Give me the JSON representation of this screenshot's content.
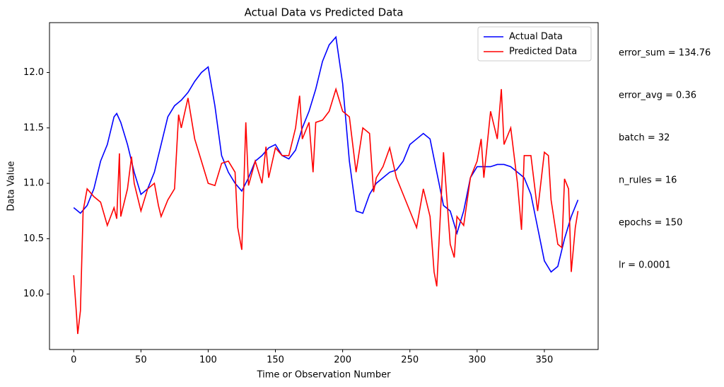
{
  "chart_data": {
    "type": "line",
    "title": "Actual Data vs Predicted Data",
    "xlabel": "Time or Observation Number",
    "ylabel": "Data Value",
    "xlim": [
      -18,
      390
    ],
    "ylim": [
      9.5,
      12.45
    ],
    "xticks": [
      0,
      50,
      100,
      150,
      200,
      250,
      300,
      350
    ],
    "yticks": [
      {
        "value": 10.0,
        "label": "10.0"
      },
      10.5,
      {
        "value": 11.0,
        "label": "11.0"
      },
      11.5,
      {
        "value": 12.0,
        "label": "12.0"
      }
    ],
    "legend": "upper right",
    "series": [
      {
        "name": "Actual Data",
        "color": "#0000ff",
        "x": [
          0,
          5,
          10,
          15,
          20,
          25,
          30,
          32,
          35,
          40,
          45,
          50,
          55,
          60,
          65,
          70,
          75,
          80,
          85,
          90,
          95,
          100,
          105,
          110,
          115,
          120,
          125,
          130,
          135,
          140,
          145,
          150,
          155,
          160,
          165,
          170,
          175,
          180,
          185,
          190,
          195,
          200,
          205,
          210,
          215,
          220,
          225,
          230,
          235,
          240,
          245,
          250,
          255,
          260,
          265,
          270,
          275,
          280,
          285,
          290,
          295,
          300,
          305,
          310,
          315,
          320,
          325,
          330,
          335,
          340,
          345,
          350,
          355,
          360,
          365,
          370,
          375
        ],
        "values": [
          10.78,
          10.73,
          10.8,
          10.95,
          11.2,
          11.35,
          11.6,
          11.63,
          11.55,
          11.35,
          11.1,
          10.9,
          10.95,
          11.1,
          11.35,
          11.6,
          11.7,
          11.75,
          11.82,
          11.92,
          12.0,
          12.05,
          11.7,
          11.25,
          11.1,
          11.0,
          10.93,
          11.05,
          11.2,
          11.25,
          11.32,
          11.35,
          11.25,
          11.22,
          11.3,
          11.5,
          11.65,
          11.85,
          12.1,
          12.25,
          12.32,
          11.9,
          11.2,
          10.75,
          10.73,
          10.9,
          11.0,
          11.05,
          11.1,
          11.12,
          11.2,
          11.35,
          11.4,
          11.45,
          11.4,
          11.1,
          10.8,
          10.75,
          10.55,
          10.75,
          11.05,
          11.15,
          11.15,
          11.15,
          11.17,
          11.17,
          11.15,
          11.1,
          11.05,
          10.9,
          10.6,
          10.3,
          10.2,
          10.25,
          10.5,
          10.7,
          10.85
        ]
      },
      {
        "name": "Predicted Data",
        "color": "#ff0000",
        "x": [
          0,
          2,
          3,
          5,
          7,
          10,
          15,
          20,
          25,
          30,
          32,
          34,
          35,
          40,
          43,
          45,
          50,
          55,
          60,
          63,
          65,
          70,
          75,
          78,
          80,
          85,
          90,
          95,
          100,
          105,
          110,
          115,
          120,
          122,
          125,
          128,
          130,
          135,
          140,
          143,
          145,
          150,
          155,
          160,
          165,
          168,
          170,
          175,
          178,
          180,
          185,
          190,
          195,
          200,
          205,
          210,
          215,
          220,
          223,
          225,
          230,
          235,
          240,
          245,
          250,
          255,
          260,
          265,
          268,
          270,
          275,
          280,
          283,
          285,
          290,
          295,
          300,
          303,
          305,
          310,
          315,
          318,
          320,
          325,
          330,
          333,
          335,
          340,
          345,
          350,
          353,
          355,
          360,
          363,
          365,
          368,
          370,
          373,
          375
        ],
        "values": [
          10.17,
          9.83,
          9.64,
          9.85,
          10.75,
          10.95,
          10.88,
          10.83,
          10.62,
          10.78,
          10.68,
          11.27,
          10.7,
          10.95,
          11.24,
          11.0,
          10.75,
          10.95,
          11.0,
          10.8,
          10.7,
          10.85,
          10.95,
          11.62,
          11.5,
          11.77,
          11.4,
          11.2,
          11.0,
          10.98,
          11.18,
          11.2,
          11.1,
          10.6,
          10.4,
          11.55,
          10.98,
          11.2,
          11.0,
          11.33,
          11.05,
          11.32,
          11.25,
          11.25,
          11.5,
          11.79,
          11.4,
          11.55,
          11.1,
          11.55,
          11.57,
          11.65,
          11.85,
          11.65,
          11.6,
          11.1,
          11.5,
          11.45,
          10.92,
          11.05,
          11.15,
          11.32,
          11.05,
          10.9,
          10.75,
          10.6,
          10.95,
          10.7,
          10.2,
          10.07,
          11.28,
          10.45,
          10.33,
          10.7,
          10.62,
          11.05,
          11.2,
          11.4,
          11.05,
          11.65,
          11.4,
          11.85,
          11.35,
          11.5,
          11.0,
          10.58,
          11.25,
          11.25,
          10.75,
          11.28,
          11.25,
          10.85,
          10.45,
          10.42,
          11.04,
          10.95,
          10.2,
          10.6,
          10.75
        ]
      }
    ],
    "annotations": [
      "error_sum = 134.76",
      "error_avg = 0.36",
      "batch = 32",
      "n_rules = 16",
      "epochs = 150",
      "lr = 0.0001"
    ]
  }
}
